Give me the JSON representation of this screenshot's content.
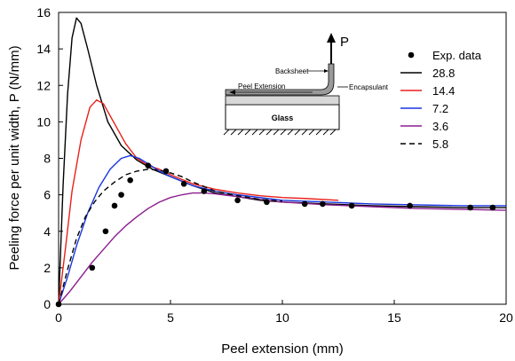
{
  "chart_data": {
    "type": "line",
    "xlabel": "Peel extension (mm)",
    "ylabel": "Peeling force per unit width, P (N/mm)",
    "xlim": [
      0,
      20
    ],
    "ylim": [
      0,
      16
    ],
    "xticks": [
      0,
      5,
      10,
      15,
      20
    ],
    "yticks": [
      0,
      2,
      4,
      6,
      8,
      10,
      12,
      14,
      16
    ],
    "grid": false,
    "legend_position": "top-right",
    "series": [
      {
        "name": "Exp. data",
        "kind": "scatter",
        "color": "#000000",
        "points": [
          [
            0.0,
            0.0
          ],
          [
            1.5,
            2.0
          ],
          [
            2.1,
            4.0
          ],
          [
            2.5,
            5.4
          ],
          [
            2.8,
            6.0
          ],
          [
            3.2,
            6.8
          ],
          [
            4.0,
            7.6
          ],
          [
            4.8,
            7.3
          ],
          [
            5.6,
            6.6
          ],
          [
            6.5,
            6.2
          ],
          [
            8.0,
            5.7
          ],
          [
            9.3,
            5.6
          ],
          [
            11.0,
            5.5
          ],
          [
            11.8,
            5.5
          ],
          [
            13.1,
            5.4
          ],
          [
            15.7,
            5.4
          ],
          [
            18.4,
            5.3
          ],
          [
            19.4,
            5.3
          ]
        ]
      },
      {
        "name": "28.8",
        "kind": "line",
        "color": "#000000",
        "dash": "",
        "points": [
          [
            0.0,
            0.0
          ],
          [
            0.2,
            6.5
          ],
          [
            0.4,
            11.5
          ],
          [
            0.6,
            14.6
          ],
          [
            0.8,
            15.7
          ],
          [
            1.0,
            15.4
          ],
          [
            1.3,
            14.0
          ],
          [
            1.7,
            12.0
          ],
          [
            2.2,
            10.0
          ],
          [
            2.8,
            8.7
          ],
          [
            3.5,
            7.9
          ],
          [
            4.2,
            7.4
          ],
          [
            5.0,
            7.0
          ],
          [
            6.0,
            6.5
          ],
          [
            7.0,
            6.1
          ],
          [
            8.0,
            5.9
          ],
          [
            9.0,
            5.7
          ],
          [
            10.0,
            5.6
          ],
          [
            11.0,
            5.55
          ],
          [
            12.0,
            5.5
          ],
          [
            13.0,
            5.45
          ],
          [
            14.0,
            5.4
          ],
          [
            16.0,
            5.35
          ],
          [
            18.0,
            5.3
          ],
          [
            20.0,
            5.3
          ]
        ]
      },
      {
        "name": "14.4",
        "kind": "line",
        "color": "#e8201a",
        "dash": "",
        "points": [
          [
            0.0,
            0.0
          ],
          [
            0.3,
            3.0
          ],
          [
            0.6,
            6.2
          ],
          [
            1.0,
            9.0
          ],
          [
            1.4,
            10.8
          ],
          [
            1.7,
            11.2
          ],
          [
            2.0,
            11.0
          ],
          [
            2.5,
            9.9
          ],
          [
            3.0,
            8.8
          ],
          [
            3.5,
            8.0
          ],
          [
            4.0,
            7.6
          ],
          [
            4.5,
            7.4
          ],
          [
            5.0,
            7.1
          ],
          [
            6.0,
            6.6
          ],
          [
            7.0,
            6.3
          ],
          [
            8.0,
            6.1
          ],
          [
            9.0,
            5.95
          ],
          [
            10.0,
            5.85
          ],
          [
            11.0,
            5.8
          ],
          [
            12.5,
            5.7
          ]
        ]
      },
      {
        "name": "7.2",
        "kind": "line",
        "color": "#1a35e0",
        "dash": "",
        "points": [
          [
            0.0,
            0.0
          ],
          [
            0.4,
            1.5
          ],
          [
            0.8,
            3.2
          ],
          [
            1.3,
            5.0
          ],
          [
            1.8,
            6.4
          ],
          [
            2.3,
            7.4
          ],
          [
            2.8,
            8.0
          ],
          [
            3.2,
            8.15
          ],
          [
            3.6,
            8.0
          ],
          [
            4.0,
            7.7
          ],
          [
            4.5,
            7.3
          ],
          [
            5.0,
            7.0
          ],
          [
            6.0,
            6.5
          ],
          [
            7.0,
            6.2
          ],
          [
            8.0,
            6.0
          ],
          [
            10.0,
            5.7
          ],
          [
            12.0,
            5.6
          ],
          [
            14.0,
            5.5
          ],
          [
            16.0,
            5.45
          ],
          [
            18.0,
            5.4
          ],
          [
            20.0,
            5.4
          ]
        ]
      },
      {
        "name": "3.6",
        "kind": "line",
        "color": "#8b1d8f",
        "dash": "",
        "points": [
          [
            0.0,
            0.0
          ],
          [
            0.5,
            0.7
          ],
          [
            1.0,
            1.5
          ],
          [
            1.5,
            2.3
          ],
          [
            2.0,
            3.0
          ],
          [
            2.5,
            3.7
          ],
          [
            3.0,
            4.3
          ],
          [
            3.5,
            4.8
          ],
          [
            4.0,
            5.25
          ],
          [
            4.5,
            5.6
          ],
          [
            5.0,
            5.85
          ],
          [
            5.5,
            6.0
          ],
          [
            6.0,
            6.1
          ],
          [
            6.5,
            6.1
          ],
          [
            7.0,
            6.05
          ],
          [
            8.0,
            5.9
          ],
          [
            9.0,
            5.75
          ],
          [
            10.0,
            5.6
          ],
          [
            12.0,
            5.45
          ],
          [
            14.0,
            5.35
          ],
          [
            16.0,
            5.25
          ],
          [
            18.0,
            5.2
          ],
          [
            20.0,
            5.15
          ]
        ]
      },
      {
        "name": "5.8",
        "kind": "line",
        "color": "#000000",
        "dash": "6,4",
        "points": [
          [
            0.0,
            0.0
          ],
          [
            0.4,
            1.9
          ],
          [
            0.8,
            3.6
          ],
          [
            1.2,
            4.8
          ],
          [
            1.6,
            5.6
          ],
          [
            2.0,
            6.2
          ],
          [
            2.5,
            6.7
          ],
          [
            3.0,
            7.1
          ],
          [
            3.5,
            7.3
          ],
          [
            4.0,
            7.4
          ],
          [
            4.5,
            7.35
          ],
          [
            5.0,
            7.2
          ],
          [
            5.5,
            7.0
          ],
          [
            6.0,
            6.7
          ],
          [
            7.0,
            6.2
          ],
          [
            8.0,
            5.95
          ],
          [
            9.0,
            5.75
          ],
          [
            10.0,
            5.65
          ]
        ]
      }
    ],
    "inset": {
      "labels": {
        "p": "P",
        "backsheet": "Backsheet",
        "peel_extension": "Peel Extension",
        "encapsulant": "Encapsulant",
        "glass": "Glass"
      }
    }
  }
}
